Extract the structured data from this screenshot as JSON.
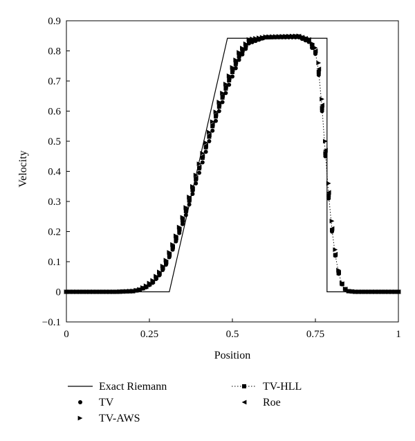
{
  "chart_data": {
    "type": "line",
    "xlabel": "Position",
    "ylabel": "Velocity",
    "xlim": [
      0,
      1
    ],
    "ylim": [
      -0.1,
      0.9
    ],
    "x_ticks": [
      "0",
      "0.25",
      "0.5",
      "0.75",
      "1"
    ],
    "y_ticks": [
      "−0.1",
      "0",
      "0.1",
      "0.2",
      "0.3",
      "0.4",
      "0.5",
      "0.6",
      "0.7",
      "0.8",
      "0.9"
    ],
    "x_tick_values": [
      0,
      0.25,
      0.5,
      0.75,
      1
    ],
    "y_tick_values": [
      -0.1,
      0,
      0.1,
      0.2,
      0.3,
      0.4,
      0.5,
      0.6,
      0.7,
      0.8,
      0.9
    ],
    "grid": false,
    "legend_position": "bottom",
    "series": [
      {
        "name": "Exact Riemann",
        "marker": "line",
        "line_style": "solid",
        "x": [
          0,
          0.31,
          0.485,
          0.735,
          0.785,
          0.785,
          1
        ],
        "y": [
          0,
          0,
          0.842,
          0.842,
          0.842,
          0,
          0
        ]
      },
      {
        "name": "TV",
        "marker": "circle",
        "x": [
          0,
          0.15,
          0.2,
          0.22,
          0.24,
          0.26,
          0.28,
          0.3,
          0.32,
          0.34,
          0.36,
          0.38,
          0.4,
          0.42,
          0.44,
          0.46,
          0.48,
          0.5,
          0.52,
          0.55,
          0.6,
          0.7,
          0.73,
          0.75,
          0.76,
          0.77,
          0.78,
          0.79,
          0.8,
          0.81,
          0.82,
          0.83,
          0.84,
          0.85,
          0.87,
          1
        ],
        "y": [
          0,
          0,
          0.002,
          0.006,
          0.015,
          0.03,
          0.055,
          0.09,
          0.14,
          0.195,
          0.255,
          0.325,
          0.395,
          0.465,
          0.535,
          0.6,
          0.66,
          0.715,
          0.77,
          0.825,
          0.845,
          0.845,
          0.83,
          0.79,
          0.72,
          0.6,
          0.45,
          0.31,
          0.2,
          0.12,
          0.06,
          0.025,
          0.008,
          0.002,
          0,
          0
        ]
      },
      {
        "name": "TV-HLL",
        "marker": "square",
        "line_style": "dotted",
        "x": [
          0,
          0.15,
          0.2,
          0.22,
          0.24,
          0.26,
          0.28,
          0.3,
          0.32,
          0.34,
          0.36,
          0.38,
          0.4,
          0.42,
          0.44,
          0.46,
          0.48,
          0.5,
          0.52,
          0.55,
          0.6,
          0.7,
          0.73,
          0.75,
          0.76,
          0.77,
          0.78,
          0.79,
          0.8,
          0.81,
          0.82,
          0.83,
          0.84,
          0.85,
          0.87,
          1
        ],
        "y": [
          0,
          0,
          0.002,
          0.007,
          0.017,
          0.033,
          0.06,
          0.097,
          0.148,
          0.205,
          0.268,
          0.338,
          0.41,
          0.48,
          0.55,
          0.615,
          0.675,
          0.73,
          0.782,
          0.832,
          0.845,
          0.848,
          0.835,
          0.795,
          0.73,
          0.61,
          0.46,
          0.32,
          0.205,
          0.122,
          0.062,
          0.026,
          0.009,
          0.002,
          0,
          0
        ]
      },
      {
        "name": "TV-AWS",
        "marker": "triangle-right",
        "x": [
          0,
          0.15,
          0.2,
          0.22,
          0.24,
          0.26,
          0.28,
          0.3,
          0.32,
          0.34,
          0.36,
          0.38,
          0.4,
          0.42,
          0.44,
          0.46,
          0.48,
          0.5,
          0.52,
          0.55,
          0.6,
          0.7,
          0.73,
          0.75,
          0.76,
          0.77,
          0.78,
          0.79,
          0.8,
          0.81,
          0.82,
          0.83,
          0.84,
          0.85,
          0.87,
          1
        ],
        "y": [
          0,
          0,
          0.003,
          0.008,
          0.02,
          0.038,
          0.066,
          0.105,
          0.157,
          0.215,
          0.28,
          0.35,
          0.425,
          0.495,
          0.565,
          0.63,
          0.69,
          0.745,
          0.795,
          0.838,
          0.847,
          0.85,
          0.84,
          0.81,
          0.76,
          0.64,
          0.5,
          0.36,
          0.235,
          0.14,
          0.072,
          0.03,
          0.01,
          0.003,
          0,
          0
        ]
      },
      {
        "name": "Roe",
        "marker": "triangle-left",
        "x": [
          0,
          0.15,
          0.2,
          0.22,
          0.24,
          0.26,
          0.28,
          0.3,
          0.32,
          0.34,
          0.36,
          0.38,
          0.4,
          0.42,
          0.44,
          0.46,
          0.48,
          0.5,
          0.52,
          0.55,
          0.6,
          0.7,
          0.73,
          0.75,
          0.76,
          0.77,
          0.78,
          0.79,
          0.8,
          0.81,
          0.82,
          0.83,
          0.84,
          0.85,
          0.87,
          1
        ],
        "y": [
          0,
          0,
          0.002,
          0.007,
          0.017,
          0.034,
          0.061,
          0.099,
          0.15,
          0.208,
          0.272,
          0.342,
          0.415,
          0.486,
          0.556,
          0.622,
          0.682,
          0.738,
          0.788,
          0.835,
          0.846,
          0.849,
          0.838,
          0.8,
          0.74,
          0.62,
          0.47,
          0.33,
          0.21,
          0.125,
          0.064,
          0.027,
          0.009,
          0.002,
          0,
          0
        ]
      }
    ]
  }
}
